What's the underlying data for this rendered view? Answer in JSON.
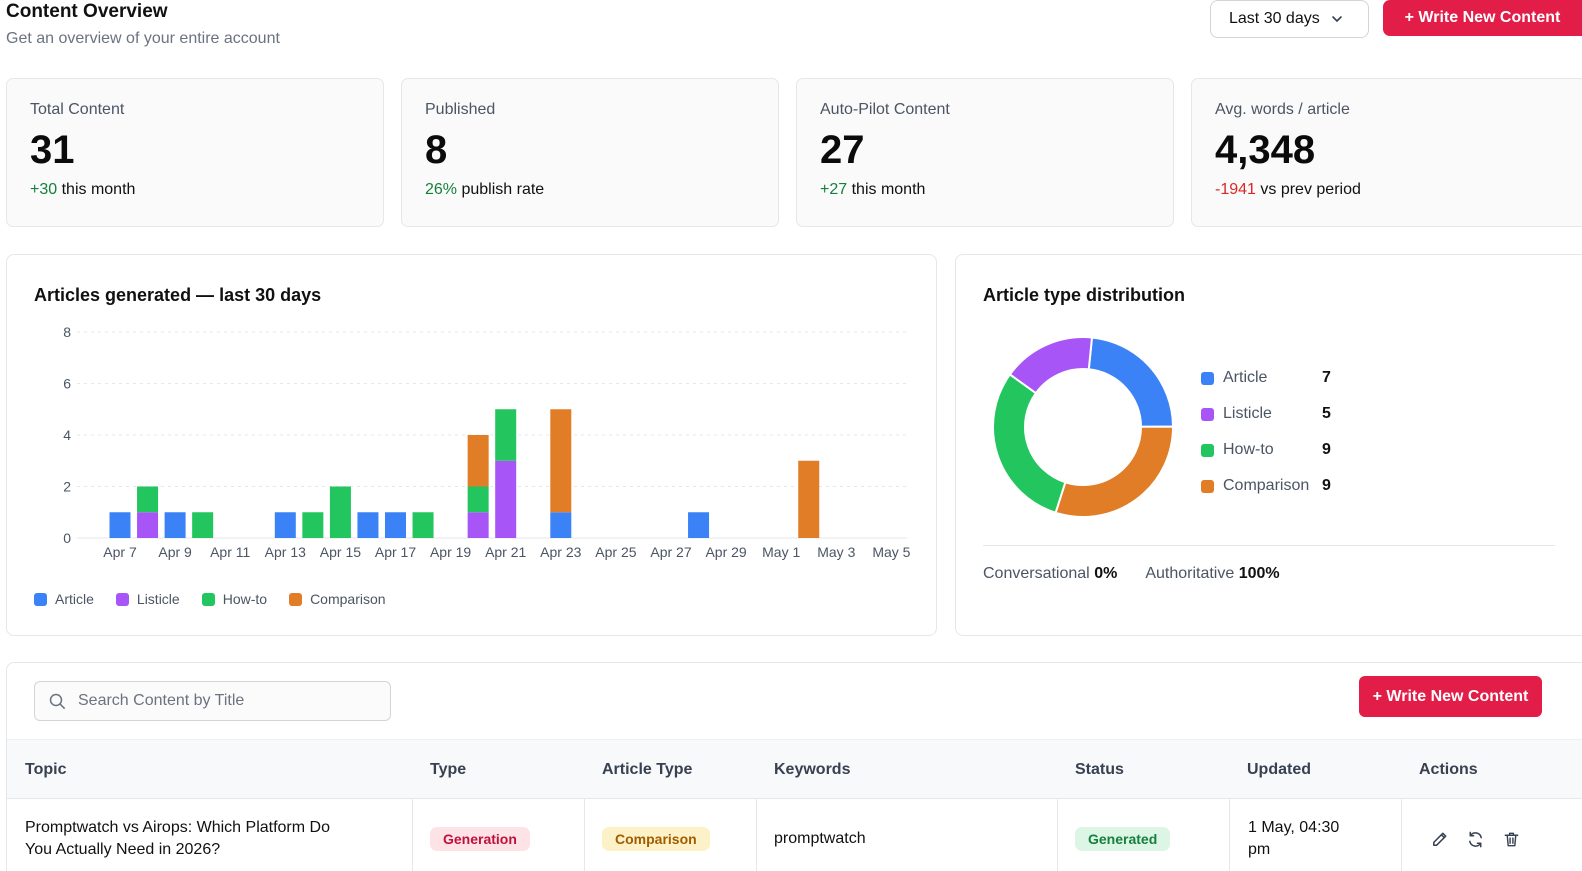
{
  "header": {
    "title": "Content Overview",
    "subtitle": "Get an overview of your entire account",
    "range_select": "Last 30 days",
    "write_button": "+ Write New Content"
  },
  "stats": [
    {
      "label": "Total Content",
      "value": "31",
      "delta": "+30",
      "suffix": "this month",
      "tone": "pos"
    },
    {
      "label": "Published",
      "value": "8",
      "delta": "26%",
      "suffix": "publish rate",
      "tone": "pos"
    },
    {
      "label": "Auto-Pilot Content",
      "value": "27",
      "delta": "+27",
      "suffix": "this month",
      "tone": "pos"
    },
    {
      "label": "Avg. words / article",
      "value": "4,348",
      "delta": "-1941",
      "suffix": "vs prev period",
      "tone": "neg"
    }
  ],
  "colors": {
    "Article": "#3b82f6",
    "Listicle": "#a855f7",
    "How-to": "#22c55e",
    "Comparison": "#e07d26",
    "accent": "#e11d48"
  },
  "chart_data": [
    {
      "type": "bar",
      "stacked": true,
      "title": "Articles generated — last 30 days",
      "categories": [
        "Apr 7",
        "Apr 8",
        "Apr 9",
        "Apr 10",
        "Apr 11",
        "Apr 12",
        "Apr 13",
        "Apr 14",
        "Apr 15",
        "Apr 16",
        "Apr 17",
        "Apr 18",
        "Apr 19",
        "Apr 20",
        "Apr 21",
        "Apr 22",
        "Apr 23",
        "Apr 24",
        "Apr 25",
        "Apr 26",
        "Apr 27",
        "Apr 28",
        "Apr 29",
        "Apr 30",
        "May 1",
        "May 2",
        "May 3",
        "May 4",
        "May 5",
        "May 6"
      ],
      "tick_labels": [
        "Apr 7",
        "Apr 9",
        "Apr 11",
        "Apr 13",
        "Apr 15",
        "Apr 17",
        "Apr 19",
        "Apr 21",
        "Apr 23",
        "Apr 25",
        "Apr 27",
        "Apr 29",
        "May 1",
        "May 3",
        "May 5"
      ],
      "series": [
        {
          "name": "Article",
          "values": [
            1,
            0,
            1,
            0,
            0,
            0,
            1,
            0,
            0,
            1,
            1,
            0,
            0,
            0,
            0,
            0,
            1,
            0,
            0,
            0,
            0,
            1,
            0,
            0,
            0,
            0,
            0,
            0,
            0,
            0
          ]
        },
        {
          "name": "Listicle",
          "values": [
            0,
            1,
            0,
            0,
            0,
            0,
            0,
            0,
            0,
            0,
            0,
            0,
            0,
            1,
            3,
            0,
            0,
            0,
            0,
            0,
            0,
            0,
            0,
            0,
            0,
            0,
            0,
            0,
            0,
            0
          ]
        },
        {
          "name": "How-to",
          "values": [
            0,
            1,
            0,
            1,
            0,
            0,
            0,
            1,
            2,
            0,
            0,
            1,
            0,
            1,
            2,
            0,
            0,
            0,
            0,
            0,
            0,
            0,
            0,
            0,
            0,
            0,
            0,
            0,
            0,
            0
          ]
        },
        {
          "name": "Comparison",
          "values": [
            0,
            0,
            0,
            0,
            0,
            0,
            0,
            0,
            0,
            0,
            0,
            0,
            0,
            2,
            0,
            0,
            4,
            0,
            0,
            0,
            0,
            0,
            0,
            0,
            0,
            3,
            0,
            0,
            0,
            0
          ]
        }
      ],
      "yticks": [
        0,
        2,
        4,
        6,
        8
      ],
      "ylim": [
        0,
        8
      ],
      "grid": true,
      "legend": "bottom-left"
    },
    {
      "type": "pie",
      "donut": true,
      "title": "Article type distribution",
      "slices": [
        {
          "name": "Article",
          "value": 7
        },
        {
          "name": "Comparison",
          "value": 9
        },
        {
          "name": "How-to",
          "value": 9
        },
        {
          "name": "Listicle",
          "value": 5
        }
      ],
      "legend": "right"
    }
  ],
  "distribution": {
    "title": "Article type distribution",
    "items": [
      {
        "name": "Article",
        "count": "7"
      },
      {
        "name": "Listicle",
        "count": "5"
      },
      {
        "name": "How-to",
        "count": "9"
      },
      {
        "name": "Comparison",
        "count": "9"
      }
    ],
    "tones": [
      {
        "label": "Conversational",
        "value": "0%"
      },
      {
        "label": "Authoritative",
        "value": "100%"
      }
    ]
  },
  "table": {
    "search_placeholder": "Search Content by Title",
    "write_button": "+ Write New Content",
    "columns": [
      "Topic",
      "Type",
      "Article Type",
      "Keywords",
      "Status",
      "Updated",
      "Actions"
    ],
    "rows": [
      {
        "topic": "Promptwatch vs Airops: Which Platform Do You Actually Need in 2026?",
        "type": "Generation",
        "article_type": "Comparison",
        "keywords": "promptwatch",
        "status": "Generated",
        "updated": "1 May, 04:30 pm",
        "actions": [
          "edit-icon",
          "regenerate-icon",
          "delete-icon"
        ]
      }
    ]
  }
}
